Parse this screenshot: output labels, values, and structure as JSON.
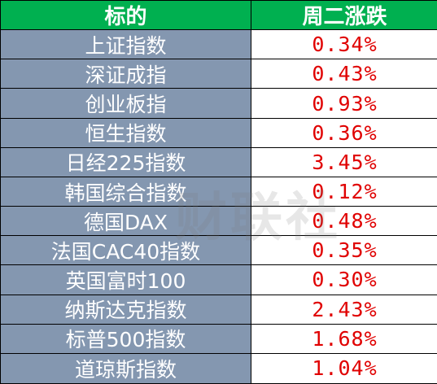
{
  "header": {
    "col_name": "标的",
    "col_value": "周二涨跌"
  },
  "rows": [
    {
      "name": "上证指数",
      "value": "0.34%"
    },
    {
      "name": "深证成指",
      "value": "0.43%"
    },
    {
      "name": "创业板指",
      "value": "0.93%"
    },
    {
      "name": "恒生指数",
      "value": "0.36%"
    },
    {
      "name": "日经225指数",
      "value": "3.45%"
    },
    {
      "name": "韩国综合指数",
      "value": "0.12%"
    },
    {
      "name": "德国DAX",
      "value": "0.48%"
    },
    {
      "name": "法国CAC40指数",
      "value": "0.35%"
    },
    {
      "name": "英国富时100",
      "value": "0.30%"
    },
    {
      "name": "纳斯达克指数",
      "value": "2.43%"
    },
    {
      "name": "标普500指数",
      "value": "1.68%"
    },
    {
      "name": "道琼斯指数",
      "value": "1.04%"
    }
  ],
  "watermark": "财联社",
  "colors": {
    "header_bg": "#00b050",
    "name_bg": "#8497b0",
    "value_text": "#e00000"
  }
}
